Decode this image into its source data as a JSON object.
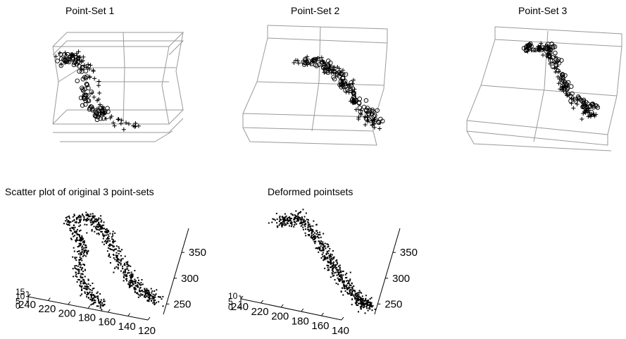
{
  "chart_data": [
    {
      "type": "scatter",
      "title": "Point-Set 1",
      "series": [
        {
          "marker": "plus"
        },
        {
          "marker": "circle"
        }
      ]
    },
    {
      "type": "scatter",
      "title": "Point-Set 2",
      "series": [
        {
          "marker": "plus"
        },
        {
          "marker": "circle"
        }
      ]
    },
    {
      "type": "scatter",
      "title": "Point-Set 3",
      "series": [
        {
          "marker": "plus"
        },
        {
          "marker": "circle"
        }
      ]
    },
    {
      "type": "scatter",
      "title": "Scatter plot of original 3 point-sets",
      "x_ticks": [
        "240",
        "220",
        "200",
        "180",
        "160",
        "140",
        "120"
      ],
      "y_ticks": [
        "350",
        "300",
        "250"
      ],
      "z_ticks": [
        "15",
        "10",
        "5",
        "0"
      ],
      "grid": false
    },
    {
      "type": "scatter",
      "title": "Deformed pointsets",
      "x_ticks": [
        "240",
        "220",
        "200",
        "180",
        "160",
        "140"
      ],
      "y_ticks": [
        "350",
        "300",
        "250"
      ],
      "z_ticks": [
        "10",
        "5",
        "0"
      ],
      "grid": false
    }
  ]
}
